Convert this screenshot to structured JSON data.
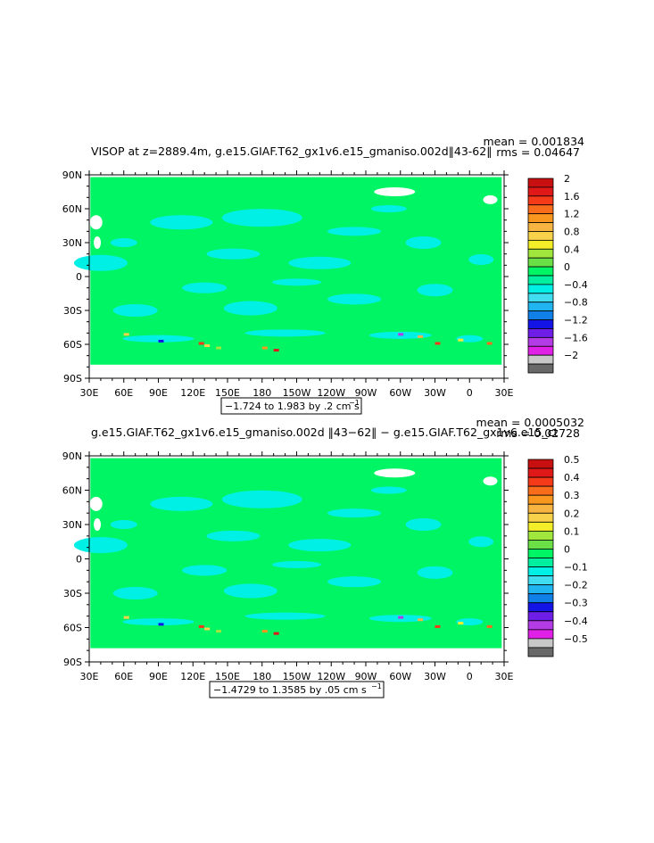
{
  "chart_data": [
    {
      "type": "heatmap",
      "title": "VISOP at z=2889.4m, g.e15.GIAF.T62_gx1v6.e15_gmaniso.002d‖43-62‖",
      "stats": {
        "mean": "mean = 0.001834",
        "rms": "rms = 0.04647"
      },
      "y_ticks": [
        "90N",
        "60N",
        "30N",
        "0",
        "30S",
        "60S",
        "90S"
      ],
      "x_ticks": [
        "30E",
        "60E",
        "90E",
        "120E",
        "150E",
        "180",
        "150W",
        "120W",
        "90W",
        "60W",
        "30W",
        "0",
        "30E"
      ],
      "range_label": "−1.724 to 1.983 by .2 cm s",
      "range_sup": "−1",
      "colorbar": {
        "labels": [
          "2",
          "1.6",
          "1.2",
          "0.8",
          "0.4",
          "0",
          "−0.4",
          "−0.8",
          "−1.2",
          "−1.6",
          "−2"
        ],
        "colors": [
          "#c81010",
          "#e01818",
          "#f43a18",
          "#f86c1c",
          "#f8961e",
          "#f8b440",
          "#f8d24a",
          "#f4ee28",
          "#a0e63c",
          "#6ae046",
          "#00f564",
          "#00f0a0",
          "#00f0e6",
          "#40dcf0",
          "#20b4f0",
          "#1080e8",
          "#1414e6",
          "#6e1ee6",
          "#b43ce6",
          "#e020e6",
          "#c8c8c8",
          "#686868"
        ]
      },
      "field": {
        "ocean_color": "#00f564",
        "negative_color": "#00f0e6"
      }
    },
    {
      "type": "heatmap",
      "title": "g.e15.GIAF.T62_gx1v6.e15_gmaniso.002d ‖43−62‖ − g.e15.GIAF.T62_gx1v6.e15_ct",
      "stats": {
        "mean": "mean = 0.0005032",
        "rms": "rms = 0.02728"
      },
      "y_ticks": [
        "90N",
        "60N",
        "30N",
        "0",
        "30S",
        "60S",
        "90S"
      ],
      "x_ticks": [
        "30E",
        "60E",
        "90E",
        "120E",
        "150E",
        "180",
        "150W",
        "120W",
        "90W",
        "60W",
        "30W",
        "0",
        "30E"
      ],
      "range_label": "−1.4729 to 1.3585 by .05 cm s",
      "range_sup": "−1",
      "colorbar": {
        "labels": [
          "0.5",
          "0.4",
          "0.3",
          "0.2",
          "0.1",
          "0",
          "−0.1",
          "−0.2",
          "−0.3",
          "−0.4",
          "−0.5"
        ],
        "colors": [
          "#c81010",
          "#e01818",
          "#f43a18",
          "#f86c1c",
          "#f8961e",
          "#f8b440",
          "#f8d24a",
          "#f4ee28",
          "#a0e63c",
          "#6ae046",
          "#00f564",
          "#00f0a0",
          "#00f0e6",
          "#40dcf0",
          "#20b4f0",
          "#1080e8",
          "#1414e6",
          "#6e1ee6",
          "#b43ce6",
          "#e020e6",
          "#c8c8c8",
          "#686868"
        ]
      },
      "field": {
        "ocean_color": "#00f564",
        "negative_color": "#00f0e6"
      }
    }
  ]
}
